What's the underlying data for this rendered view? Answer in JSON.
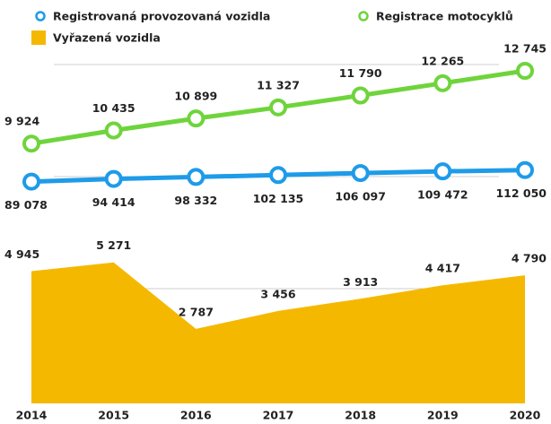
{
  "chart_data": [
    {
      "type": "line",
      "legend": "top",
      "ylim": [
        7500,
        14100
      ],
      "y2lim": [
        40000,
        380000
      ],
      "series": [
        {
          "name": "Registrovaná provozovaná vozidla",
          "color": "#1e9be9",
          "axis": "y2",
          "values": [
            89078,
            94414,
            98332,
            102135,
            106097,
            109472,
            112050
          ],
          "value_labels": [
            "89 078",
            "94 414",
            "98 332",
            "102 135",
            "106 097",
            "109 472",
            "112 050"
          ]
        },
        {
          "name": "Registrace motocyklů",
          "color": "#6fd43c",
          "values": [
            9924,
            10435,
            10899,
            11327,
            11790,
            12265,
            12745
          ],
          "value_labels": [
            "9 924",
            "10 435",
            "10 899",
            "11 327",
            "11 790",
            "12 265",
            "12 745"
          ]
        }
      ]
    },
    {
      "type": "area",
      "categories": [
        "2014",
        "2015",
        "2016",
        "2017",
        "2018",
        "2019",
        "2020"
      ],
      "ylim": [
        0,
        6000
      ],
      "series": [
        {
          "name": "Vyřazená vozidla",
          "color": "#f5b800",
          "values": [
            4945,
            5271,
            2787,
            3456,
            3913,
            4417,
            4790
          ],
          "value_labels": [
            "4 945",
            "5 271",
            "2 787",
            "3 456",
            "3 913",
            "4 417",
            "4 790"
          ]
        }
      ]
    }
  ]
}
